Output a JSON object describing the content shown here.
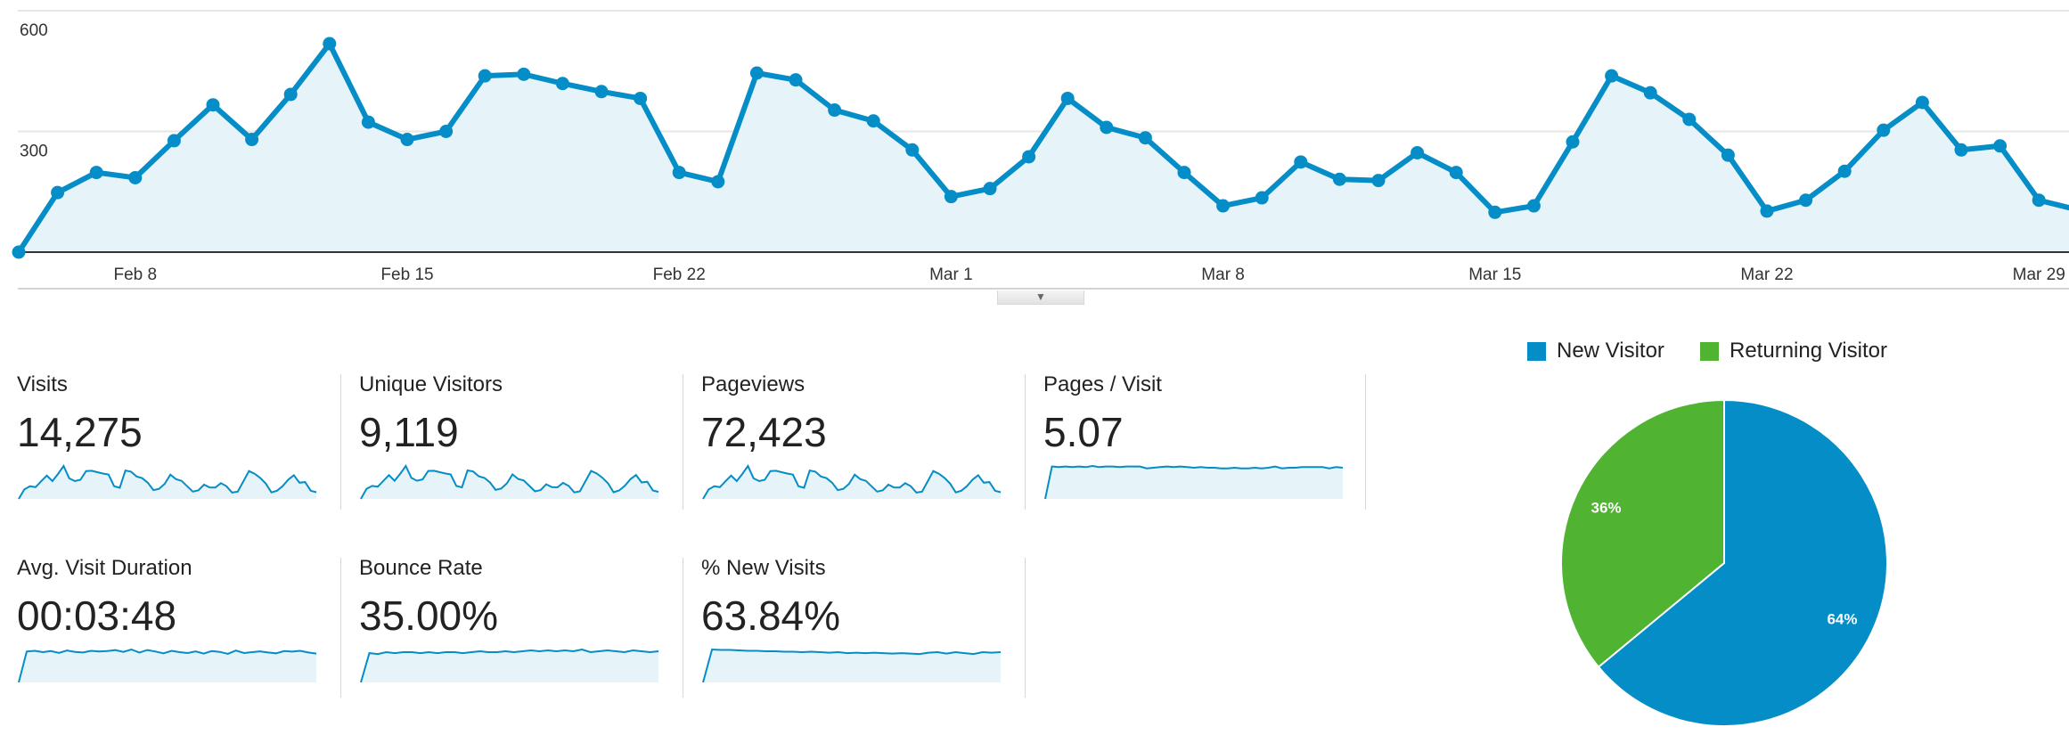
{
  "colors": {
    "primary": "#058dc7",
    "area_fill": "#e6f3f9",
    "returning": "#50b432",
    "grid": "#e6e6e6"
  },
  "chart_data": [
    {
      "type": "area",
      "x": [
        "Feb 5",
        "Feb 6",
        "Feb 7",
        "Feb 8",
        "Feb 9",
        "Feb 10",
        "Feb 11",
        "Feb 12",
        "Feb 13",
        "Feb 14",
        "Feb 15",
        "Feb 16",
        "Feb 17",
        "Feb 18",
        "Feb 19",
        "Feb 20",
        "Feb 21",
        "Feb 22",
        "Feb 23",
        "Feb 24",
        "Feb 25",
        "Feb 26",
        "Feb 27",
        "Feb 28",
        "Mar 1",
        "Mar 2",
        "Mar 3",
        "Mar 4",
        "Mar 5",
        "Mar 6",
        "Mar 7",
        "Mar 8",
        "Mar 9",
        "Mar 10",
        "Mar 11",
        "Mar 12",
        "Mar 13",
        "Mar 14",
        "Mar 15",
        "Mar 16",
        "Mar 17",
        "Mar 18",
        "Mar 19",
        "Mar 20",
        "Mar 21",
        "Mar 22",
        "Mar 23",
        "Mar 24",
        "Mar 25",
        "Mar 26",
        "Mar 27",
        "Mar 28",
        "Mar 29",
        "Mar 30"
      ],
      "values": [
        0,
        148,
        198,
        185,
        277,
        366,
        280,
        392,
        518,
        323,
        280,
        300,
        438,
        442,
        419,
        399,
        382,
        198,
        175,
        445,
        428,
        353,
        326,
        254,
        138,
        158,
        237,
        382,
        310,
        284,
        198,
        115,
        135,
        224,
        181,
        178,
        247,
        198,
        99,
        115,
        274,
        438,
        396,
        330,
        241,
        102,
        129,
        201,
        303,
        372,
        254,
        264,
        129,
        105
      ],
      "y_ticks": [
        "300",
        "600"
      ],
      "x_tick_labels": [
        "Feb 8",
        "Feb 15",
        "Feb 22",
        "Mar 1",
        "Mar 8",
        "Mar 15",
        "Mar 22",
        "Mar 29"
      ],
      "ylim": [
        0,
        600
      ],
      "grid": true
    },
    {
      "type": "pie",
      "legend": [
        "New Visitor",
        "Returning Visitor"
      ],
      "legend_placement": "top",
      "values": [
        64,
        36
      ],
      "labels": [
        "64%",
        "36%"
      ]
    }
  ],
  "toggle_icon": "triangle-down-icon",
  "stats": [
    {
      "label": "Visits",
      "value": "14,275",
      "spark": [
        0,
        148,
        198,
        185,
        277,
        366,
        280,
        392,
        518,
        323,
        280,
        300,
        438,
        442,
        419,
        399,
        382,
        198,
        175,
        445,
        428,
        353,
        326,
        254,
        138,
        158,
        237,
        382,
        310,
        284,
        198,
        115,
        135,
        224,
        181,
        178,
        247,
        198,
        99,
        115,
        274,
        438,
        396,
        330,
        241,
        102,
        129,
        201,
        303,
        372,
        254,
        264,
        129,
        105
      ]
    },
    {
      "label": "Unique Visitors",
      "value": "9,119",
      "spark": [
        0,
        100,
        130,
        122,
        180,
        238,
        182,
        250,
        330,
        210,
        182,
        195,
        280,
        282,
        268,
        255,
        245,
        130,
        115,
        285,
        274,
        226,
        210,
        165,
        90,
        103,
        155,
        245,
        200,
        184,
        130,
        76,
        88,
        146,
        118,
        116,
        160,
        130,
        65,
        76,
        178,
        280,
        254,
        212,
        157,
        67,
        85,
        131,
        197,
        240,
        165,
        172,
        85,
        70
      ]
    },
    {
      "label": "Pageviews",
      "value": "72,423",
      "spark": [
        0,
        740,
        990,
        925,
        1385,
        1830,
        1400,
        1960,
        2590,
        1615,
        1400,
        1500,
        2190,
        2210,
        2095,
        1995,
        1910,
        990,
        875,
        2225,
        2140,
        1765,
        1630,
        1270,
        690,
        790,
        1185,
        1910,
        1550,
        1420,
        990,
        575,
        675,
        1120,
        905,
        890,
        1235,
        990,
        495,
        575,
        1370,
        2190,
        1980,
        1650,
        1205,
        510,
        645,
        1005,
        1515,
        1860,
        1270,
        1320,
        645,
        525
      ]
    },
    {
      "label": "Pages / Visit",
      "value": "5.07",
      "spark": [
        0,
        5.3,
        5.2,
        5.3,
        5.2,
        5.3,
        5.2,
        5.4,
        5.2,
        5.3,
        5.3,
        5.2,
        5.3,
        5.3,
        5.3,
        5.0,
        5.1,
        5.2,
        5.3,
        5.2,
        5.3,
        5.2,
        5.1,
        5.2,
        5.1,
        5.1,
        5.0,
        5.0,
        5.1,
        5.0,
        5.0,
        5.1,
        5.0,
        5.1,
        5.3,
        5.0,
        5.1,
        5.1,
        5.2,
        5.2,
        5.2,
        5.2,
        5.0,
        5.2,
        5.1
      ]
    },
    {
      "label": "Avg. Visit Duration",
      "value": "00:03:48",
      "spark": [
        0,
        225,
        230,
        220,
        228,
        215,
        232,
        222,
        218,
        230,
        225,
        228,
        235,
        222,
        240,
        218,
        236,
        225,
        212,
        230,
        220,
        214,
        226,
        210,
        228,
        222,
        208,
        232,
        214,
        220,
        226,
        218,
        212,
        228,
        224,
        230,
        218,
        210
      ]
    },
    {
      "label": "Bounce Rate",
      "value": "35.00%",
      "spark": [
        0,
        32,
        31,
        33,
        32,
        33,
        33,
        32,
        33,
        32,
        33,
        33,
        32,
        33,
        34,
        33,
        33,
        34,
        33,
        34,
        35,
        34,
        35,
        34,
        35,
        34,
        36,
        33,
        34,
        35,
        34,
        33,
        35,
        34,
        33,
        34
      ]
    },
    {
      "label": "% New Visits",
      "value": "63.84%",
      "spark": [
        0,
        72,
        71,
        71,
        70,
        69,
        69,
        68,
        68,
        67,
        67,
        66,
        67,
        66,
        65,
        66,
        64,
        65,
        64,
        65,
        64,
        63,
        64,
        63,
        62,
        65,
        66,
        63,
        66,
        64,
        62,
        66,
        65,
        66
      ]
    }
  ]
}
